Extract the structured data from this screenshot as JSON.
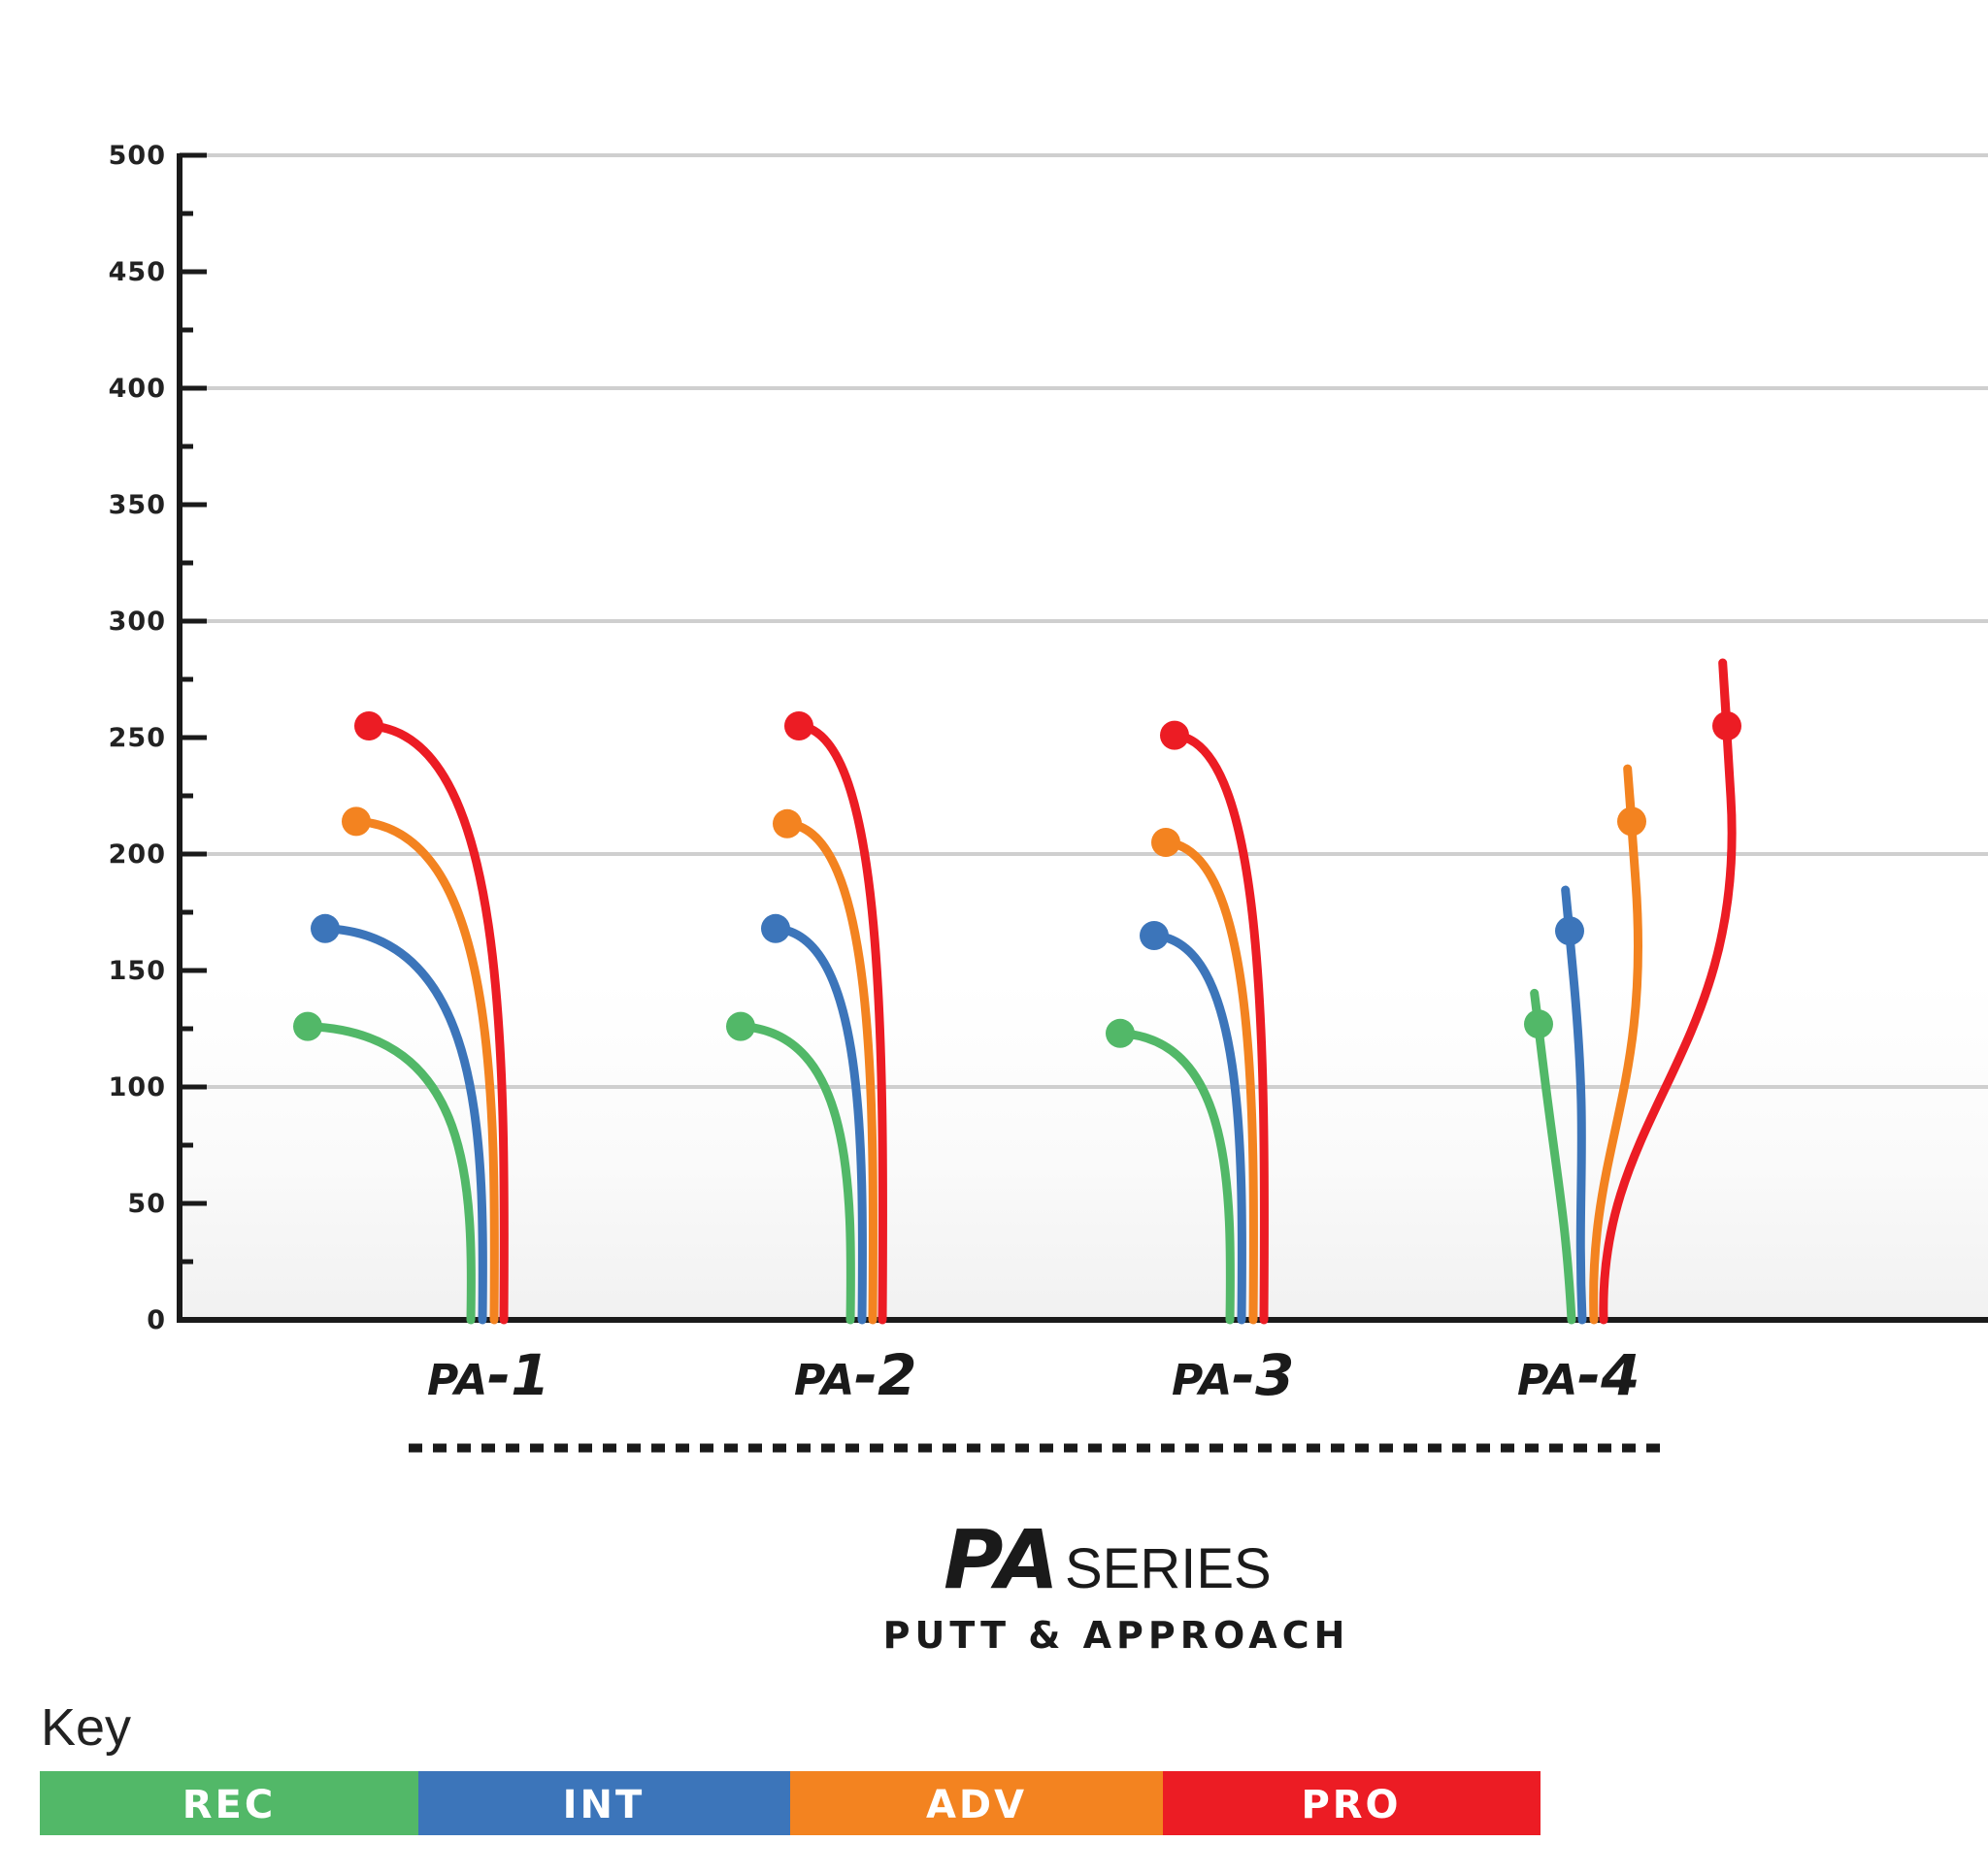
{
  "chart_data": {
    "type": "line",
    "title": "",
    "xlabel": "",
    "ylabel": "",
    "ylim": [
      0,
      500
    ],
    "y_ticks": [
      "0",
      "50",
      "100",
      "150",
      "200",
      "250",
      "300",
      "350",
      "400",
      "450",
      "500"
    ],
    "grid": true,
    "categories": [
      "PA-1",
      "PA-2",
      "PA-3",
      "PA-4"
    ],
    "series": [
      {
        "name": "REC",
        "color": "#52b868",
        "values": [
          126,
          126,
          123,
          127
        ]
      },
      {
        "name": "INT",
        "color": "#3c75ba",
        "values": [
          168,
          168,
          165,
          167
        ]
      },
      {
        "name": "ADV",
        "color": "#f38320",
        "values": [
          214,
          213,
          205,
          214
        ]
      },
      {
        "name": "PRO",
        "color": "#ec1c24",
        "values": [
          255,
          255,
          251,
          255
        ]
      }
    ]
  },
  "disc_labels": [
    {
      "prefix": "PA",
      "suffix": "-1"
    },
    {
      "prefix": "PA",
      "suffix": "-2"
    },
    {
      "prefix": "PA",
      "suffix": "-3"
    },
    {
      "prefix": "PA",
      "suffix": "-4"
    }
  ],
  "brand": {
    "logo_mark": "PA",
    "series_word": "SERIES",
    "subtitle": "PUTT & APPROACH"
  },
  "key": {
    "title": "Key",
    "items": [
      {
        "label": "REC",
        "color": "#52b868"
      },
      {
        "label": "INT",
        "color": "#3c75ba"
      },
      {
        "label": "ADV",
        "color": "#f38320"
      },
      {
        "label": "PRO",
        "color": "#ec1c24"
      }
    ]
  }
}
